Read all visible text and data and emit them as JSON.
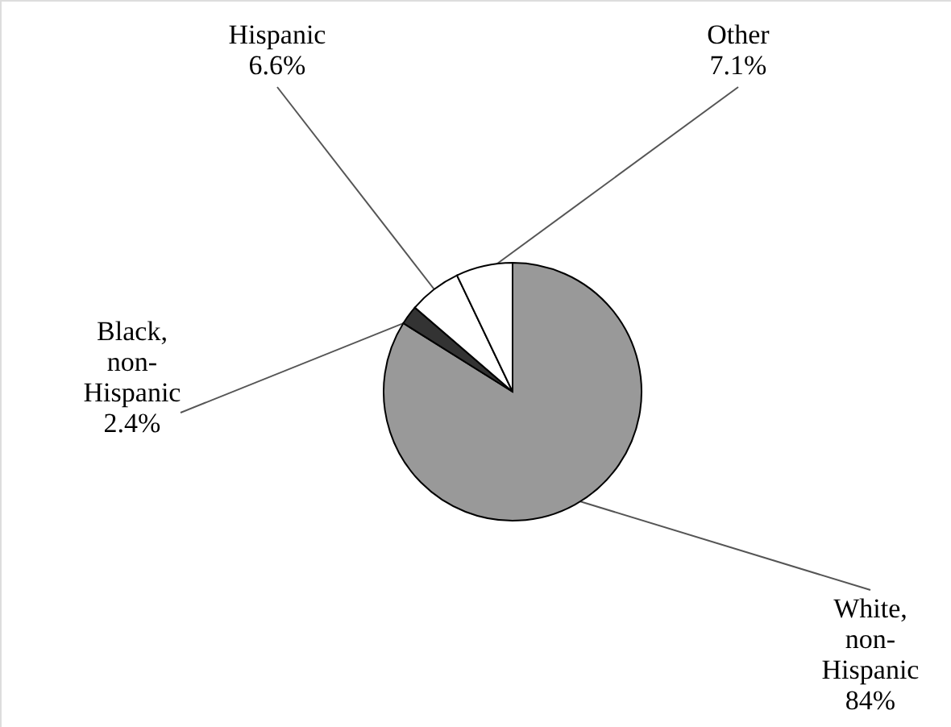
{
  "chart_data": {
    "type": "pie",
    "categories": [
      "White, non-Hispanic",
      "Black, non-Hispanic",
      "Hispanic",
      "Other"
    ],
    "values": [
      84,
      2.4,
      6.6,
      7.1
    ],
    "value_labels": [
      "84%",
      "2.4%",
      "6.6%",
      "7.1%"
    ],
    "colors": [
      "#999999",
      "#333333",
      "#ffffff",
      "#ffffff"
    ]
  }
}
